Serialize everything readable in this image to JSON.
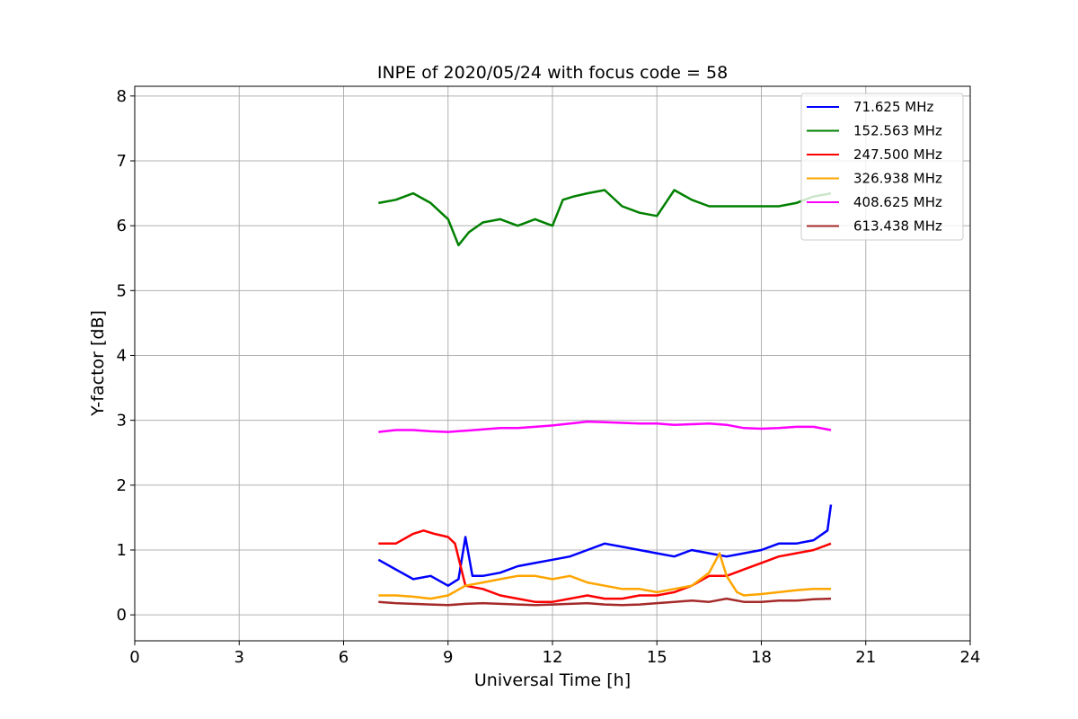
{
  "chart_data": {
    "type": "line",
    "title": "INPE of 2020/05/24 with focus code = 58",
    "xlabel": "Universal Time [h]",
    "ylabel": "Y-factor [dB]",
    "xlim": [
      0,
      24
    ],
    "ylim": [
      -0.4,
      8.15
    ],
    "xticks": [
      "0",
      "3",
      "6",
      "9",
      "12",
      "15",
      "18",
      "21",
      "24"
    ],
    "yticks": [
      "0",
      "1",
      "2",
      "3",
      "4",
      "5",
      "6",
      "7",
      "8"
    ],
    "grid": true,
    "legend_position": "top-right",
    "series": [
      {
        "name": "71.625 MHz",
        "color": "#0000ff",
        "x": [
          7.0,
          7.5,
          8.0,
          8.5,
          9.0,
          9.3,
          9.5,
          9.7,
          10.0,
          10.5,
          11.0,
          11.5,
          12.0,
          12.5,
          13.0,
          13.5,
          14.0,
          14.5,
          15.0,
          15.5,
          16.0,
          16.5,
          17.0,
          17.5,
          18.0,
          18.5,
          19.0,
          19.5,
          19.9,
          20.0
        ],
        "y": [
          0.85,
          0.7,
          0.55,
          0.6,
          0.45,
          0.55,
          1.2,
          0.6,
          0.6,
          0.65,
          0.75,
          0.8,
          0.85,
          0.9,
          1.0,
          1.1,
          1.05,
          1.0,
          0.95,
          0.9,
          1.0,
          0.95,
          0.9,
          0.95,
          1.0,
          1.1,
          1.1,
          1.15,
          1.3,
          1.7
        ]
      },
      {
        "name": "152.563 MHz",
        "color": "#008000",
        "x": [
          7.0,
          7.5,
          8.0,
          8.5,
          9.0,
          9.3,
          9.6,
          10.0,
          10.5,
          11.0,
          11.5,
          12.0,
          12.3,
          12.6,
          13.0,
          13.5,
          14.0,
          14.5,
          15.0,
          15.5,
          16.0,
          16.5,
          17.0,
          17.5,
          18.0,
          18.5,
          19.0,
          19.5,
          20.0
        ],
        "y": [
          6.35,
          6.4,
          6.5,
          6.35,
          6.1,
          5.7,
          5.9,
          6.05,
          6.1,
          6.0,
          6.1,
          6.0,
          6.4,
          6.45,
          6.5,
          6.55,
          6.3,
          6.2,
          6.15,
          6.55,
          6.4,
          6.3,
          6.3,
          6.3,
          6.3,
          6.3,
          6.35,
          6.45,
          6.5
        ]
      },
      {
        "name": "247.500 MHz",
        "color": "#ff0000",
        "x": [
          7.0,
          7.5,
          8.0,
          8.3,
          8.6,
          9.0,
          9.2,
          9.5,
          10.0,
          10.5,
          11.0,
          11.5,
          12.0,
          12.5,
          13.0,
          13.5,
          14.0,
          14.5,
          15.0,
          15.5,
          16.0,
          16.5,
          17.0,
          17.5,
          18.0,
          18.5,
          19.0,
          19.5,
          20.0
        ],
        "y": [
          1.1,
          1.1,
          1.25,
          1.3,
          1.25,
          1.2,
          1.1,
          0.45,
          0.4,
          0.3,
          0.25,
          0.2,
          0.2,
          0.25,
          0.3,
          0.25,
          0.25,
          0.3,
          0.3,
          0.35,
          0.45,
          0.6,
          0.6,
          0.7,
          0.8,
          0.9,
          0.95,
          1.0,
          1.1
        ]
      },
      {
        "name": "326.938 MHz",
        "color": "#ffa500",
        "x": [
          7.0,
          7.5,
          8.0,
          8.5,
          9.0,
          9.5,
          10.0,
          10.5,
          11.0,
          11.5,
          12.0,
          12.5,
          13.0,
          13.5,
          14.0,
          14.5,
          15.0,
          15.5,
          16.0,
          16.5,
          16.8,
          17.0,
          17.3,
          17.5,
          18.0,
          18.5,
          19.0,
          19.5,
          20.0
        ],
        "y": [
          0.3,
          0.3,
          0.28,
          0.25,
          0.3,
          0.45,
          0.5,
          0.55,
          0.6,
          0.6,
          0.55,
          0.6,
          0.5,
          0.45,
          0.4,
          0.4,
          0.35,
          0.4,
          0.45,
          0.65,
          0.95,
          0.6,
          0.35,
          0.3,
          0.32,
          0.35,
          0.38,
          0.4,
          0.4
        ]
      },
      {
        "name": "408.625 MHz",
        "color": "#ff00ff",
        "x": [
          7.0,
          7.5,
          8.0,
          8.5,
          9.0,
          9.5,
          10.0,
          10.5,
          11.0,
          11.5,
          12.0,
          12.5,
          13.0,
          13.5,
          14.0,
          14.5,
          15.0,
          15.5,
          16.0,
          16.5,
          17.0,
          17.5,
          18.0,
          18.5,
          19.0,
          19.5,
          20.0
        ],
        "y": [
          2.82,
          2.85,
          2.85,
          2.83,
          2.82,
          2.84,
          2.86,
          2.88,
          2.88,
          2.9,
          2.92,
          2.95,
          2.98,
          2.97,
          2.96,
          2.95,
          2.95,
          2.93,
          2.94,
          2.95,
          2.93,
          2.88,
          2.87,
          2.88,
          2.9,
          2.9,
          2.85
        ]
      },
      {
        "name": "613.438 MHz",
        "color": "#a52a2a",
        "x": [
          7.0,
          7.5,
          8.0,
          8.5,
          9.0,
          9.5,
          10.0,
          10.5,
          11.0,
          11.5,
          12.0,
          12.5,
          13.0,
          13.5,
          14.0,
          14.5,
          15.0,
          15.5,
          16.0,
          16.5,
          17.0,
          17.5,
          18.0,
          18.5,
          19.0,
          19.5,
          20.0
        ],
        "y": [
          0.2,
          0.18,
          0.17,
          0.16,
          0.15,
          0.17,
          0.18,
          0.17,
          0.16,
          0.15,
          0.16,
          0.17,
          0.18,
          0.16,
          0.15,
          0.16,
          0.18,
          0.2,
          0.22,
          0.2,
          0.25,
          0.2,
          0.2,
          0.22,
          0.22,
          0.24,
          0.25
        ]
      }
    ]
  }
}
